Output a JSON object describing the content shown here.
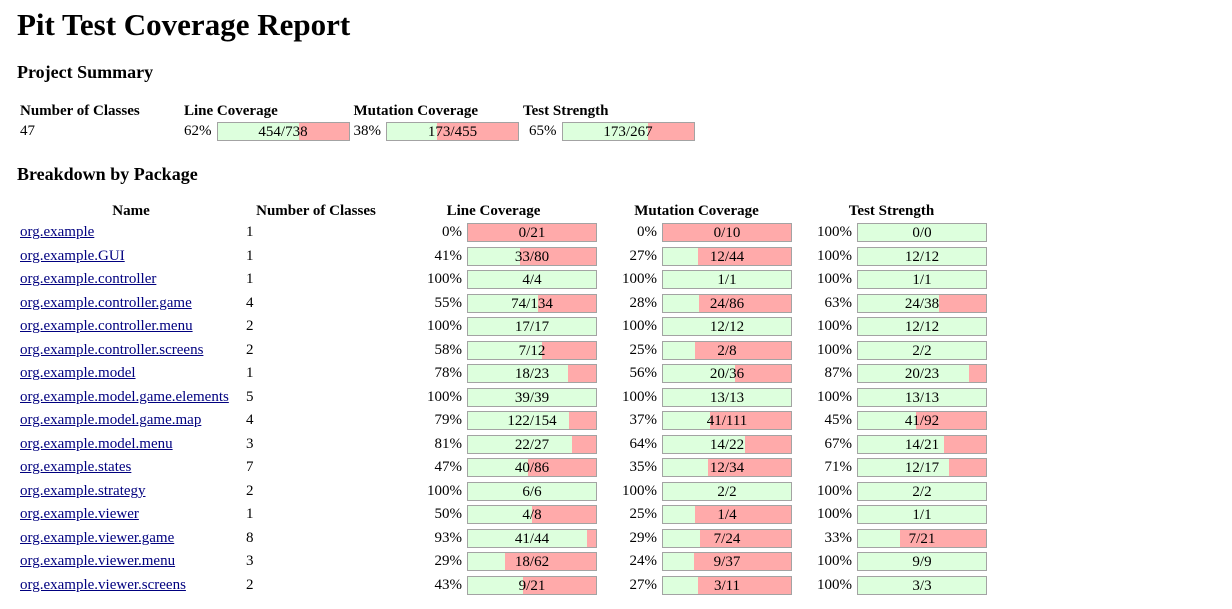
{
  "title": "Pit Test Coverage Report",
  "summary": {
    "heading": "Project Summary",
    "headers": [
      "Number of Classes",
      "Line Coverage",
      "Mutation Coverage",
      "Test Strength"
    ],
    "classes": "47",
    "line": {
      "pct": "62%",
      "ratio": "454/738",
      "fraction": 0.62
    },
    "mutation": {
      "pct": "38%",
      "ratio": "173/455",
      "fraction": 0.38
    },
    "strength": {
      "pct": "65%",
      "ratio": "173/267",
      "fraction": 0.65
    }
  },
  "breakdown": {
    "heading": "Breakdown by Package",
    "headers": [
      "Name",
      "Number of Classes",
      "Line Coverage",
      "Mutation Coverage",
      "Test Strength"
    ],
    "rows": [
      {
        "name": "org.example",
        "classes": "1",
        "line_pct": "0%",
        "line": "0/21",
        "line_f": 0.0,
        "mut_pct": "0%",
        "mut": "0/10",
        "mut_f": 0.0,
        "str_pct": "100%",
        "str": "0/0",
        "str_f": 1.0
      },
      {
        "name": "org.example.GUI",
        "classes": "1",
        "line_pct": "41%",
        "line": "33/80",
        "line_f": 0.41,
        "mut_pct": "27%",
        "mut": "12/44",
        "mut_f": 0.27,
        "str_pct": "100%",
        "str": "12/12",
        "str_f": 1.0
      },
      {
        "name": "org.example.controller",
        "classes": "1",
        "line_pct": "100%",
        "line": "4/4",
        "line_f": 1.0,
        "mut_pct": "100%",
        "mut": "1/1",
        "mut_f": 1.0,
        "str_pct": "100%",
        "str": "1/1",
        "str_f": 1.0
      },
      {
        "name": "org.example.controller.game",
        "classes": "4",
        "line_pct": "55%",
        "line": "74/134",
        "line_f": 0.55,
        "mut_pct": "28%",
        "mut": "24/86",
        "mut_f": 0.28,
        "str_pct": "63%",
        "str": "24/38",
        "str_f": 0.63
      },
      {
        "name": "org.example.controller.menu",
        "classes": "2",
        "line_pct": "100%",
        "line": "17/17",
        "line_f": 1.0,
        "mut_pct": "100%",
        "mut": "12/12",
        "mut_f": 1.0,
        "str_pct": "100%",
        "str": "12/12",
        "str_f": 1.0
      },
      {
        "name": "org.example.controller.screens",
        "classes": "2",
        "line_pct": "58%",
        "line": "7/12",
        "line_f": 0.58,
        "mut_pct": "25%",
        "mut": "2/8",
        "mut_f": 0.25,
        "str_pct": "100%",
        "str": "2/2",
        "str_f": 1.0
      },
      {
        "name": "org.example.model",
        "classes": "1",
        "line_pct": "78%",
        "line": "18/23",
        "line_f": 0.78,
        "mut_pct": "56%",
        "mut": "20/36",
        "mut_f": 0.56,
        "str_pct": "87%",
        "str": "20/23",
        "str_f": 0.87
      },
      {
        "name": "org.example.model.game.elements",
        "classes": "5",
        "line_pct": "100%",
        "line": "39/39",
        "line_f": 1.0,
        "mut_pct": "100%",
        "mut": "13/13",
        "mut_f": 1.0,
        "str_pct": "100%",
        "str": "13/13",
        "str_f": 1.0
      },
      {
        "name": "org.example.model.game.map",
        "classes": "4",
        "line_pct": "79%",
        "line": "122/154",
        "line_f": 0.79,
        "mut_pct": "37%",
        "mut": "41/111",
        "mut_f": 0.37,
        "str_pct": "45%",
        "str": "41/92",
        "str_f": 0.45
      },
      {
        "name": "org.example.model.menu",
        "classes": "3",
        "line_pct": "81%",
        "line": "22/27",
        "line_f": 0.81,
        "mut_pct": "64%",
        "mut": "14/22",
        "mut_f": 0.64,
        "str_pct": "67%",
        "str": "14/21",
        "str_f": 0.67
      },
      {
        "name": "org.example.states",
        "classes": "7",
        "line_pct": "47%",
        "line": "40/86",
        "line_f": 0.47,
        "mut_pct": "35%",
        "mut": "12/34",
        "mut_f": 0.35,
        "str_pct": "71%",
        "str": "12/17",
        "str_f": 0.71
      },
      {
        "name": "org.example.strategy",
        "classes": "2",
        "line_pct": "100%",
        "line": "6/6",
        "line_f": 1.0,
        "mut_pct": "100%",
        "mut": "2/2",
        "mut_f": 1.0,
        "str_pct": "100%",
        "str": "2/2",
        "str_f": 1.0
      },
      {
        "name": "org.example.viewer",
        "classes": "1",
        "line_pct": "50%",
        "line": "4/8",
        "line_f": 0.5,
        "mut_pct": "25%",
        "mut": "1/4",
        "mut_f": 0.25,
        "str_pct": "100%",
        "str": "1/1",
        "str_f": 1.0
      },
      {
        "name": "org.example.viewer.game",
        "classes": "8",
        "line_pct": "93%",
        "line": "41/44",
        "line_f": 0.93,
        "mut_pct": "29%",
        "mut": "7/24",
        "mut_f": 0.29,
        "str_pct": "33%",
        "str": "7/21",
        "str_f": 0.33
      },
      {
        "name": "org.example.viewer.menu",
        "classes": "3",
        "line_pct": "29%",
        "line": "18/62",
        "line_f": 0.29,
        "mut_pct": "24%",
        "mut": "9/37",
        "mut_f": 0.24,
        "str_pct": "100%",
        "str": "9/9",
        "str_f": 1.0
      },
      {
        "name": "org.example.viewer.screens",
        "classes": "2",
        "line_pct": "43%",
        "line": "9/21",
        "line_f": 0.43,
        "mut_pct": "27%",
        "mut": "3/11",
        "mut_f": 0.27,
        "str_pct": "100%",
        "str": "3/3",
        "str_f": 1.0
      }
    ]
  },
  "colors": {
    "covered": "#ddffdd",
    "uncovered": "#ffaaaa",
    "link": "#00007f"
  }
}
